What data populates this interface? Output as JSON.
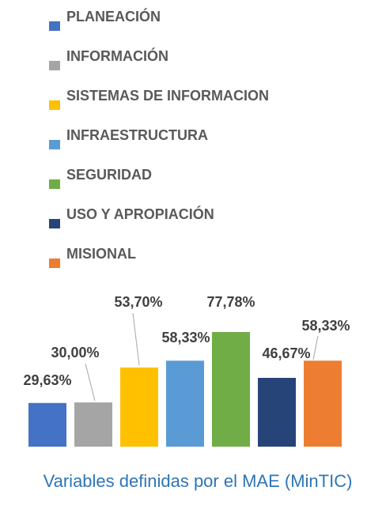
{
  "chart_data": {
    "type": "bar",
    "title": "Variables definidas por el MAE (MinTIC)",
    "categories": [
      "PLANEACIÓN",
      "INFORMACIÓN",
      "SISTEMAS DE INFORMACION",
      "INFRAESTRUCTURA",
      "SEGURIDAD",
      "USO Y APROPIACIÓN",
      "MISIONAL"
    ],
    "values": [
      29.63,
      30.0,
      53.7,
      58.33,
      77.78,
      46.67,
      58.33
    ],
    "value_labels": [
      "29,63%",
      "30,00%",
      "53,70%",
      "58,33%",
      "77,78%",
      "46,67%",
      "58,33%"
    ],
    "colors": [
      "#4472c4",
      "#a5a5a5",
      "#ffc000",
      "#5b9bd5",
      "#70ad47",
      "#264478",
      "#ed7d31"
    ],
    "legend": "top"
  }
}
